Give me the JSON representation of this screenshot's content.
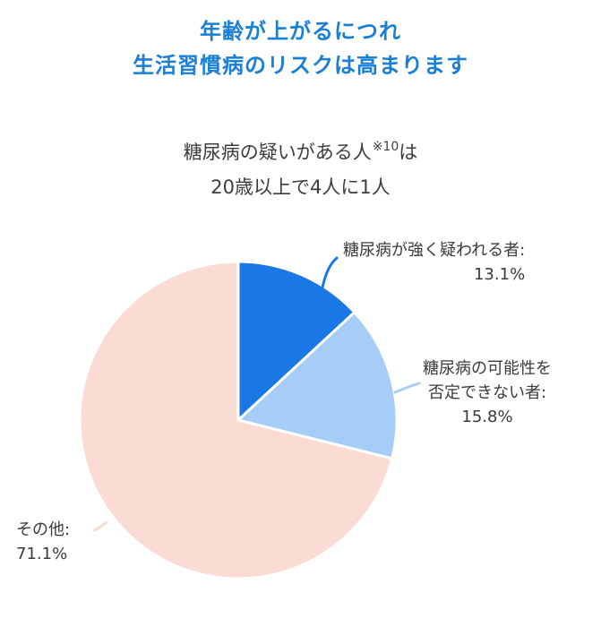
{
  "title": {
    "line1": "年齢が上がるにつれ",
    "line2": "生活習慣病のリスクは高まります"
  },
  "chart_data": {
    "type": "pie",
    "title": "糖尿病の疑いがある人※10は 20歳以上で4人に1人",
    "subtitle_line1": "糖尿病の疑いがある人",
    "subtitle_note": "※10",
    "subtitle_line1_end": "は",
    "subtitle_line2": "20歳以上で4人に1人",
    "slices": [
      {
        "label_lines": [
          "糖尿病が強く疑われる者:"
        ],
        "value": 13.1,
        "value_label": "13.1%",
        "color": "#1a78e6"
      },
      {
        "label_lines": [
          "糖尿病の可能性を",
          "否定できない者:"
        ],
        "value": 15.8,
        "value_label": "15.8%",
        "color": "#a6cdf7"
      },
      {
        "label_lines": [
          "その他:"
        ],
        "value": 71.1,
        "value_label": "71.1%",
        "color": "#fadcd5"
      }
    ],
    "start_angle_deg": 0,
    "direction": "clockwise",
    "colors": {
      "title": "#1b7fd6",
      "text": "#3c3c3c",
      "separator": "#ffffff"
    }
  }
}
